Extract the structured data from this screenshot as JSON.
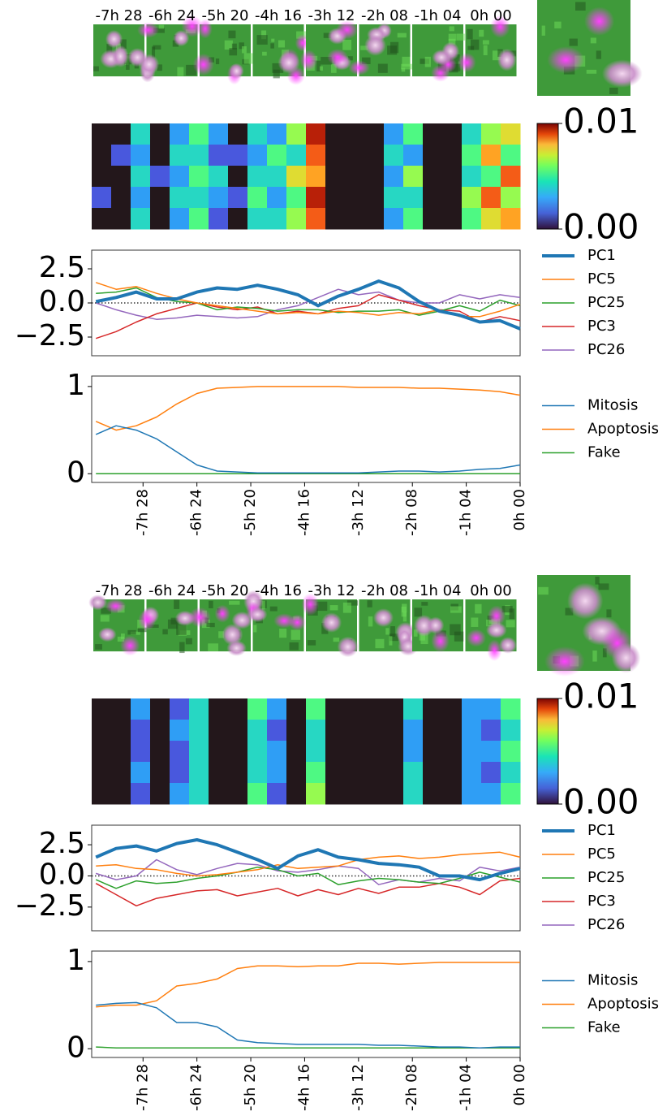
{
  "thumbnails": [
    {
      "labels": [
        "-7h 28",
        "-6h 24",
        "-5h 20",
        "-4h 16",
        "-3h 12",
        "-2h 08",
        "-1h 04",
        "0h 00"
      ]
    },
    {
      "labels": [
        "-7h 28",
        "-6h 24",
        "-5h 20",
        "-4h 16",
        "-3h 12",
        "-2h 08",
        "-1h 04",
        "0h 00"
      ]
    }
  ],
  "chart_data": [
    {
      "type": "heatmap",
      "x": [
        -504,
        -480,
        -456,
        -432,
        -408,
        -384,
        -360,
        -336,
        -312,
        -288,
        -264,
        -240,
        -216,
        -192,
        -168,
        -144,
        -120,
        -96,
        -72,
        -48,
        -24,
        0
      ],
      "z": [
        [
          0,
          0,
          0.003,
          0,
          0.002,
          0.004,
          0.002,
          0,
          0.003,
          0.002,
          0.005,
          0.009,
          0,
          0,
          0,
          0.002,
          0.004,
          0,
          0,
          0.003,
          0.005,
          0.006
        ],
        [
          0,
          0.001,
          0.002,
          0,
          0.003,
          0.003,
          0.001,
          0.001,
          0.002,
          0.004,
          0.003,
          0.008,
          0,
          0,
          0,
          0.003,
          0.002,
          0,
          0,
          0.004,
          0.007,
          0.004
        ],
        [
          0,
          0,
          0.003,
          0.001,
          0.002,
          0.004,
          0.003,
          0,
          0.003,
          0.003,
          0.006,
          0.007,
          0,
          0,
          0,
          0.002,
          0.005,
          0,
          0,
          0.003,
          0.004,
          0.008
        ],
        [
          0.001,
          0,
          0.002,
          0,
          0.003,
          0.003,
          0.002,
          0.001,
          0.004,
          0.002,
          0.004,
          0.009,
          0,
          0,
          0,
          0.003,
          0.003,
          0,
          0,
          0.005,
          0.008,
          0.005
        ],
        [
          0,
          0,
          0.003,
          0,
          0.002,
          0.004,
          0.001,
          0,
          0.003,
          0.003,
          0.005,
          0.008,
          0,
          0,
          0,
          0.002,
          0.004,
          0,
          0,
          0.004,
          0.006,
          0.007
        ]
      ],
      "zlim": [
        0,
        0.01
      ],
      "zticks": [
        {
          "value": 0,
          "label": "0.00"
        },
        {
          "value": 0.01,
          "label": "0.01"
        }
      ]
    },
    {
      "type": "line",
      "x": [
        -504,
        -480,
        -456,
        -432,
        -408,
        -384,
        -360,
        -336,
        -312,
        -288,
        -264,
        -240,
        -216,
        -192,
        -168,
        -144,
        -120,
        -96,
        -72,
        -48,
        -24,
        0
      ],
      "xlim": [
        -509,
        0
      ],
      "ylim": [
        -3.87,
        3.87
      ],
      "yticks": [
        {
          "value": -2.5,
          "label": "−2.5"
        },
        {
          "value": 0,
          "label": "0.0"
        },
        2.5
      ],
      "hline": 0,
      "legend": "outside right",
      "series": [
        {
          "name": "PC1",
          "color": "#1f77b4",
          "width": 4,
          "values": [
            0.1,
            0.4,
            0.8,
            0.3,
            0.3,
            0.8,
            1.1,
            1.0,
            1.3,
            1.0,
            0.6,
            -0.2,
            0.5,
            1.0,
            1.6,
            1.1,
            0.1,
            -0.6,
            -0.9,
            -1.4,
            -1.3,
            -1.9
          ]
        },
        {
          "name": "PC5",
          "color": "#ff7f0e",
          "width": 1.5,
          "values": [
            1.5,
            1.0,
            1.2,
            0.7,
            0.3,
            0.0,
            -0.2,
            -0.4,
            -0.6,
            -0.8,
            -0.7,
            -0.8,
            -0.6,
            -0.7,
            -0.9,
            -0.7,
            -0.8,
            -0.5,
            -1.0,
            -1.0,
            -0.6,
            -0.1
          ]
        },
        {
          "name": "PC25",
          "color": "#2ca02c",
          "width": 1.5,
          "values": [
            0.7,
            0.8,
            1.1,
            0.4,
            0.1,
            0.0,
            -0.5,
            -0.3,
            -0.4,
            -0.6,
            -0.5,
            -0.5,
            -0.7,
            -0.6,
            -0.6,
            -0.5,
            -0.9,
            -0.6,
            -0.2,
            -0.6,
            0.2,
            -0.2
          ]
        },
        {
          "name": "PC3",
          "color": "#d62728",
          "width": 1.5,
          "values": [
            -2.6,
            -2.1,
            -1.4,
            -0.8,
            -0.4,
            0.0,
            -0.3,
            -0.5,
            -0.3,
            -0.8,
            -0.6,
            -0.8,
            -0.4,
            -0.2,
            0.6,
            0.2,
            -0.2,
            -0.5,
            -0.6,
            -1.4,
            -1.0,
            -1.3
          ]
        },
        {
          "name": "PC26",
          "color": "#9467bd",
          "width": 1.5,
          "values": [
            0.0,
            -0.5,
            -0.9,
            -1.2,
            -1.1,
            -0.9,
            -1.0,
            -1.1,
            -1.0,
            -0.5,
            -0.2,
            0.4,
            1.0,
            0.6,
            0.8,
            0.2,
            0.0,
            0.0,
            0.6,
            0.3,
            0.6,
            0.4
          ]
        }
      ]
    },
    {
      "type": "line",
      "x": [
        -504,
        -480,
        -456,
        -432,
        -408,
        -384,
        -360,
        -336,
        -312,
        -288,
        -264,
        -240,
        -216,
        -192,
        -168,
        -144,
        -120,
        -96,
        -72,
        -48,
        -24,
        0
      ],
      "xlim": [
        -509,
        0
      ],
      "ylim": [
        -0.1,
        1.12
      ],
      "yticks": [
        0,
        1
      ],
      "xticks": [
        {
          "value": -448,
          "label": "-7h 28"
        },
        {
          "value": -384,
          "label": "-6h 24"
        },
        {
          "value": -320,
          "label": "-5h 20"
        },
        {
          "value": -256,
          "label": "-4h 16"
        },
        {
          "value": -192,
          "label": "-3h 12"
        },
        {
          "value": -128,
          "label": "-2h 08"
        },
        {
          "value": -64,
          "label": "-1h 04"
        },
        {
          "value": 0,
          "label": "0h 00"
        }
      ],
      "legend": "outside right",
      "series": [
        {
          "name": "Mitosis",
          "color": "#1f77b4",
          "width": 1.5,
          "values": [
            0.45,
            0.55,
            0.5,
            0.4,
            0.25,
            0.1,
            0.03,
            0.02,
            0.01,
            0.01,
            0.01,
            0.01,
            0.01,
            0.01,
            0.02,
            0.03,
            0.03,
            0.02,
            0.03,
            0.05,
            0.06,
            0.1
          ]
        },
        {
          "name": "Apoptosis",
          "color": "#ff7f0e",
          "width": 1.5,
          "values": [
            0.6,
            0.5,
            0.55,
            0.65,
            0.8,
            0.92,
            0.98,
            0.99,
            1,
            1,
            1,
            1,
            1,
            0.99,
            0.99,
            0.99,
            0.98,
            0.98,
            0.97,
            0.96,
            0.94,
            0.9
          ]
        },
        {
          "name": "Fake",
          "color": "#2ca02c",
          "width": 1.5,
          "values": [
            0,
            0,
            0,
            0,
            0,
            0,
            0,
            0,
            0,
            0,
            0,
            0,
            0,
            0,
            0,
            0,
            0,
            0,
            0,
            0,
            0,
            0
          ]
        }
      ]
    },
    {
      "type": "heatmap",
      "x": [
        -504,
        -480,
        -456,
        -432,
        -408,
        -384,
        -360,
        -336,
        -312,
        -288,
        -264,
        -240,
        -216,
        -192,
        -168,
        -144,
        -120,
        -96,
        -72,
        -48,
        -24,
        0
      ],
      "z": [
        [
          0,
          0,
          0.002,
          0,
          0.001,
          0.003,
          0,
          0,
          0.004,
          0.002,
          0,
          0.004,
          0,
          0,
          0,
          0,
          0.003,
          0,
          0,
          0.002,
          0.002,
          0.004
        ],
        [
          0,
          0,
          0.001,
          0,
          0.002,
          0.003,
          0,
          0,
          0.003,
          0.001,
          0,
          0.003,
          0,
          0,
          0,
          0,
          0.002,
          0,
          0,
          0.002,
          0.001,
          0.003
        ],
        [
          0,
          0,
          0.001,
          0,
          0.001,
          0.003,
          0,
          0,
          0.003,
          0.002,
          0,
          0.003,
          0,
          0,
          0,
          0,
          0.002,
          0,
          0,
          0.002,
          0.002,
          0.004
        ],
        [
          0,
          0,
          0.002,
          0,
          0.001,
          0.003,
          0,
          0,
          0.003,
          0.002,
          0,
          0.004,
          0,
          0,
          0,
          0,
          0.003,
          0,
          0,
          0.002,
          0.001,
          0.003
        ],
        [
          0,
          0,
          0.001,
          0,
          0.002,
          0.003,
          0,
          0,
          0.004,
          0.001,
          0,
          0.005,
          0,
          0,
          0,
          0,
          0.003,
          0,
          0,
          0.002,
          0.002,
          0.004
        ]
      ],
      "zlim": [
        0,
        0.01
      ],
      "zticks": [
        {
          "value": 0,
          "label": "0.00"
        },
        {
          "value": 0.01,
          "label": "0.01"
        }
      ]
    },
    {
      "type": "line",
      "x": [
        -504,
        -480,
        -456,
        -432,
        -408,
        -384,
        -360,
        -336,
        -312,
        -288,
        -264,
        -240,
        -216,
        -192,
        -168,
        -144,
        -120,
        -96,
        -72,
        -48,
        -24,
        0
      ],
      "xlim": [
        -509,
        0
      ],
      "ylim": [
        -4.4,
        4.07
      ],
      "yticks": [
        {
          "value": -2.5,
          "label": "−2.5"
        },
        {
          "value": 0,
          "label": "0.0"
        },
        2.5
      ],
      "hline": 0,
      "legend": "outside right",
      "series": [
        {
          "name": "PC1",
          "color": "#1f77b4",
          "width": 4,
          "values": [
            1.5,
            2.2,
            2.4,
            2.0,
            2.6,
            2.9,
            2.5,
            1.9,
            1.3,
            0.6,
            1.6,
            2.1,
            1.5,
            1.3,
            1.0,
            0.9,
            0.7,
            0.0,
            0.0,
            -0.3,
            0.2,
            0.6
          ]
        },
        {
          "name": "PC5",
          "color": "#ff7f0e",
          "width": 1.5,
          "values": [
            0.8,
            0.9,
            0.6,
            0.5,
            0.2,
            0.0,
            0.1,
            0.3,
            0.5,
            0.9,
            0.6,
            0.7,
            0.8,
            1.3,
            1.5,
            1.6,
            1.4,
            1.5,
            1.7,
            1.8,
            1.9,
            1.5
          ]
        },
        {
          "name": "PC25",
          "color": "#2ca02c",
          "width": 1.5,
          "values": [
            -0.3,
            -1.0,
            -0.4,
            -0.6,
            -0.5,
            -0.2,
            0.0,
            0.3,
            0.7,
            0.5,
            0.0,
            0.2,
            -0.7,
            -0.4,
            -0.2,
            -0.3,
            -0.5,
            -0.6,
            -0.2,
            0.3,
            -0.1,
            -0.5
          ]
        },
        {
          "name": "PC3",
          "color": "#d62728",
          "width": 1.5,
          "values": [
            -0.6,
            -1.5,
            -2.4,
            -1.8,
            -1.5,
            -1.2,
            -1.1,
            -1.6,
            -1.3,
            -1.0,
            -1.6,
            -1.1,
            -1.5,
            -1.0,
            -1.4,
            -0.9,
            -0.9,
            -0.6,
            -0.9,
            -1.5,
            -0.4,
            -0.2
          ]
        },
        {
          "name": "PC26",
          "color": "#9467bd",
          "width": 1.5,
          "values": [
            0.2,
            -0.3,
            0.0,
            1.3,
            0.5,
            0.1,
            0.6,
            1.0,
            0.9,
            0.4,
            0.3,
            0.5,
            0.8,
            0.6,
            -0.7,
            -0.3,
            -0.5,
            -0.2,
            -0.4,
            0.7,
            0.4,
            0.7
          ]
        }
      ]
    },
    {
      "type": "line",
      "x": [
        -504,
        -480,
        -456,
        -432,
        -408,
        -384,
        -360,
        -336,
        -312,
        -288,
        -264,
        -240,
        -216,
        -192,
        -168,
        -144,
        -120,
        -96,
        -72,
        -48,
        -24,
        0
      ],
      "xlim": [
        -509,
        0
      ],
      "ylim": [
        -0.1,
        1.12
      ],
      "yticks": [
        0,
        1
      ],
      "xticks": [
        {
          "value": -448,
          "label": "-7h 28"
        },
        {
          "value": -384,
          "label": "-6h 24"
        },
        {
          "value": -320,
          "label": "-5h 20"
        },
        {
          "value": -256,
          "label": "-4h 16"
        },
        {
          "value": -192,
          "label": "-3h 12"
        },
        {
          "value": -128,
          "label": "-2h 08"
        },
        {
          "value": -64,
          "label": "-1h 04"
        },
        {
          "value": 0,
          "label": "0h 00"
        }
      ],
      "legend": "outside right",
      "series": [
        {
          "name": "Mitosis",
          "color": "#1f77b4",
          "width": 1.5,
          "values": [
            0.5,
            0.52,
            0.53,
            0.47,
            0.3,
            0.3,
            0.25,
            0.1,
            0.07,
            0.06,
            0.05,
            0.05,
            0.05,
            0.05,
            0.04,
            0.04,
            0.03,
            0.02,
            0.02,
            0.01,
            0.02,
            0.02
          ]
        },
        {
          "name": "Apoptosis",
          "color": "#ff7f0e",
          "width": 1.5,
          "values": [
            0.48,
            0.5,
            0.5,
            0.55,
            0.72,
            0.75,
            0.8,
            0.92,
            0.95,
            0.95,
            0.94,
            0.95,
            0.95,
            0.98,
            0.98,
            0.97,
            0.98,
            0.99,
            0.99,
            0.99,
            0.99,
            0.99
          ]
        },
        {
          "name": "Fake",
          "color": "#2ca02c",
          "width": 1.5,
          "values": [
            0.02,
            0.01,
            0.01,
            0.01,
            0.01,
            0.01,
            0.01,
            0.01,
            0.01,
            0.01,
            0.01,
            0.01,
            0.01,
            0.01,
            0.01,
            0.01,
            0.01,
            0.01,
            0.01,
            0.01,
            0.01,
            0.01
          ]
        }
      ]
    }
  ]
}
